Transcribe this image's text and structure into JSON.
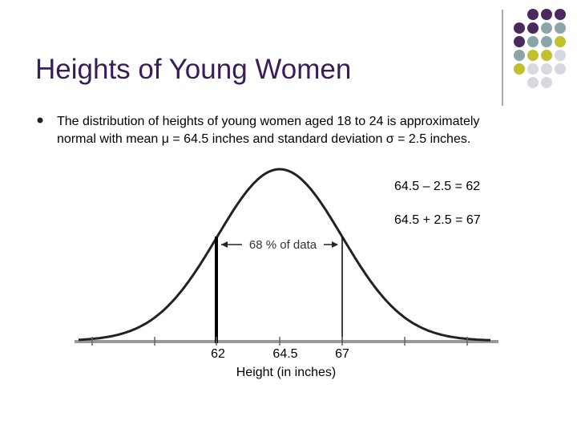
{
  "title": "Heights of Young Women",
  "bullet": [
    "The distribution of heights of young women aged 18 to 24 is approximately",
    "normal with mean μ = 64.5 inches and standard deviation σ = 2.5 inches."
  ],
  "figure": {
    "equations": [
      "64.5 – 2.5 = 62",
      "64.5 + 2.5 = 67"
    ],
    "region_label": "68 % of data",
    "tick_labels": [
      "62",
      "64.5",
      "67"
    ],
    "axis_label": "Height (in inches)"
  }
}
